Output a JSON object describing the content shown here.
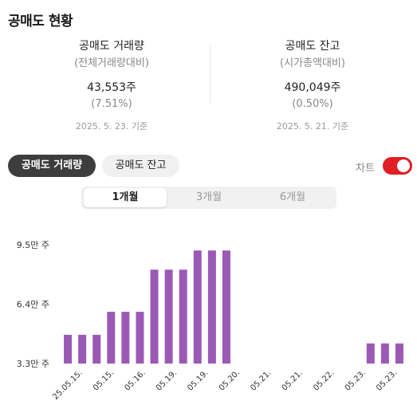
{
  "header": {
    "title": "공매도 현황"
  },
  "volume": {
    "title": "공매도 거래량",
    "subtitle": "(전체거래량대비)",
    "value": "43,553주",
    "pct": "(7.51%)",
    "date": "2025. 5. 23. 기준"
  },
  "balance": {
    "title": "공매도 잔고",
    "subtitle": "(시가총액대비)",
    "value": "490,049주",
    "pct": "(0.50%)",
    "date": "2025. 5. 21. 기준"
  },
  "tabs": {
    "volume_label": "공매도 거래량",
    "balance_label": "공매도 잔고"
  },
  "chart_toggle": {
    "label": "차트",
    "on": true
  },
  "periods": [
    "1개월",
    "3개월",
    "6개월"
  ],
  "selected_period": "1개월",
  "colors": {
    "bar": "#9b59b6",
    "toggle": "#e11d25"
  },
  "chart_data": {
    "type": "bar",
    "y_tick_labels": [
      "9.5만 주",
      "6.4만 주",
      "3.3만 주"
    ],
    "y_ticks": [
      95000,
      64000,
      33000
    ],
    "ylim": [
      33000,
      95000
    ],
    "x_tick_labels": [
      "25.05.15.",
      "05.15.",
      "05.16.",
      "05.19.",
      "05.19.",
      "05.20.",
      "05.21.",
      "05.21.",
      "05.22.",
      "05.23.",
      "05.23."
    ],
    "values": [
      48000,
      48000,
      48000,
      60000,
      60000,
      60000,
      82000,
      82000,
      82000,
      92000,
      92000,
      92000,
      33000,
      33000,
      33000,
      33000,
      33000,
      33000,
      33000,
      33000,
      33000,
      43500,
      43500,
      43500
    ]
  }
}
